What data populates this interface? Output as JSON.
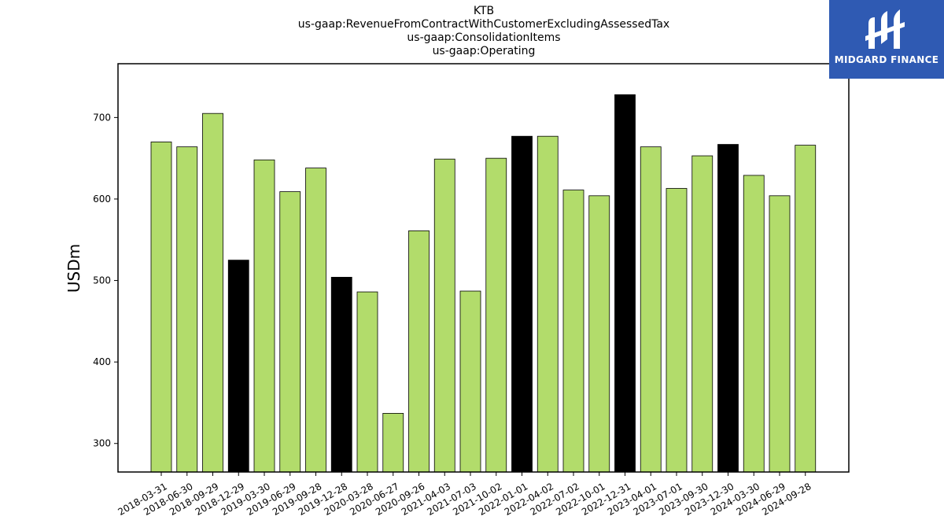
{
  "chart_data": {
    "type": "bar",
    "title_lines": [
      "KTB",
      "us-gaap:RevenueFromContractWithCustomerExcludingAssessedTax",
      "us-gaap:ConsolidationItems",
      "us-gaap:Operating"
    ],
    "xlabel": "",
    "ylabel": "USDm",
    "ylim": [
      265,
      766
    ],
    "yticks": [
      300,
      400,
      500,
      600,
      700
    ],
    "grid": false,
    "categories": [
      "2018-03-31",
      "2018-06-30",
      "2018-09-29",
      "2018-12-29",
      "2019-03-30",
      "2019-06-29",
      "2019-09-28",
      "2019-12-28",
      "2020-03-28",
      "2020-06-27",
      "2020-09-26",
      "2021-04-03",
      "2021-07-03",
      "2021-10-02",
      "2022-01-01",
      "2022-04-02",
      "2022-07-02",
      "2022-10-01",
      "2022-12-31",
      "2023-04-01",
      "2023-07-01",
      "2023-09-30",
      "2023-12-30",
      "2024-03-30",
      "2024-06-29",
      "2024-09-28"
    ],
    "values": [
      670,
      664,
      705,
      525,
      648,
      609,
      638,
      504,
      486,
      337,
      561,
      649,
      487,
      650,
      677,
      677,
      611,
      604,
      728,
      664,
      613,
      653,
      667,
      629,
      604,
      666
    ],
    "highlight": [
      false,
      false,
      false,
      true,
      false,
      false,
      false,
      true,
      false,
      false,
      false,
      false,
      false,
      false,
      true,
      false,
      false,
      false,
      true,
      false,
      false,
      false,
      true,
      false,
      false,
      false
    ],
    "colors": {
      "bar": "#b2dc6b",
      "highlight": "#000000",
      "edge": "#000000"
    }
  },
  "logo": {
    "text": "MIDGARD FINANCE",
    "background": "#2f5ab3"
  }
}
